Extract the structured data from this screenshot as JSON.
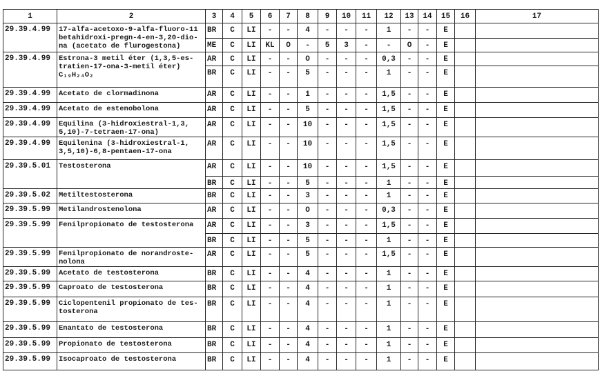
{
  "headers": [
    "1",
    "2",
    "3",
    "4",
    "5",
    "6",
    "7",
    "8",
    "9",
    "10",
    "11",
    "12",
    "13",
    "14",
    "15",
    "16",
    "17"
  ],
  "entries": [
    {
      "code": "29.39.4.99",
      "name": [
        "17-alfa-acetoxo-9-alfa-fluoro-11",
        "betahidroxi-pregn-4-en-3,20-dio-",
        "na (acetato de flurogestona)"
      ],
      "rows": [
        [
          "BR",
          "C",
          "LI",
          "-",
          "-",
          "4",
          "-",
          "-",
          "-",
          "1",
          "-",
          "-",
          "E",
          "",
          ""
        ],
        [
          "ME",
          "C",
          "LI",
          "KL",
          "O",
          "-",
          "5",
          "3",
          "-",
          "-",
          "O",
          "-",
          "E",
          "",
          ""
        ]
      ]
    },
    {
      "code": "29.39.4.99",
      "name": [
        "Estrona-3 metil éter (1,3,5-es-",
        "tratien-17-ona-3-metil éter)",
        "C₁₉H₂₄O₂"
      ],
      "rows": [
        [
          "AR",
          "C",
          "LI",
          "-",
          "-",
          "O",
          "-",
          "-",
          "-",
          "0,3",
          "-",
          "-",
          "E",
          "",
          ""
        ],
        [
          "BR",
          "C",
          "LI",
          "-",
          "-",
          "5",
          "-",
          "-",
          "-",
          "1",
          "-",
          "-",
          "E",
          "",
          ""
        ]
      ]
    },
    {
      "code": "29.39.4.99",
      "name": [
        "Acetato de clormadinona"
      ],
      "rows": [
        [
          "AR",
          "C",
          "LI",
          "-",
          "-",
          "1",
          "-",
          "-",
          "-",
          "1,5",
          "-",
          "-",
          "E",
          "",
          ""
        ]
      ]
    },
    {
      "code": "29.39.4.99",
      "name": [
        "Acetato de estenobolona"
      ],
      "rows": [
        [
          "AR",
          "C",
          "LI",
          "-",
          "-",
          "5",
          "-",
          "-",
          "-",
          "1,5",
          "-",
          "-",
          "E",
          "",
          ""
        ]
      ]
    },
    {
      "code": "29.39.4.99",
      "name": [
        "Equilina (3-hidroxiestral-1,3,",
        "5,10)-7-tetraen-17-ona)"
      ],
      "rows": [
        [
          "AR",
          "C",
          "LI",
          "-",
          "-",
          "10",
          "-",
          "-",
          "-",
          "1,5",
          "-",
          "-",
          "E",
          "",
          ""
        ]
      ]
    },
    {
      "code": "29.39.4.99",
      "name": [
        "Equilenina (3-hidroxiestral-1,",
        "3,5,10)-6,8-pentaen-17-ona"
      ],
      "rows": [
        [
          "AR",
          "C",
          "LI",
          "-",
          "-",
          "10",
          "-",
          "-",
          "-",
          "1,5",
          "-",
          "-",
          "E",
          "",
          ""
        ]
      ]
    },
    {
      "code": "29.39.5.01",
      "name": [
        "Testosterona"
      ],
      "rows": [
        [
          "AR",
          "C",
          "LI",
          "-",
          "-",
          "10",
          "-",
          "-",
          "-",
          "1,5",
          "-",
          "-",
          "E",
          "",
          ""
        ],
        [
          "BR",
          "C",
          "LI",
          "-",
          "-",
          "5",
          "-",
          "-",
          "-",
          "1",
          "-",
          "-",
          "E",
          "",
          ""
        ]
      ]
    },
    {
      "code": "29.39.5.02",
      "name": [
        "Metiltestosterona"
      ],
      "rows": [
        [
          "BR",
          "C",
          "LI",
          "-",
          "-",
          "3",
          "-",
          "-",
          "-",
          "1",
          "-",
          "-",
          "E",
          "",
          ""
        ]
      ]
    },
    {
      "code": "29.39.5.99",
      "name": [
        "Metilandrostenolona"
      ],
      "rows": [
        [
          "AR",
          "C",
          "LI",
          "-",
          "-",
          "O",
          "-",
          "-",
          "-",
          "0,3",
          "-",
          "-",
          "E",
          "",
          ""
        ]
      ]
    },
    {
      "code": "29.39.5.99",
      "name": [
        "Fenilpropionato de testosterona"
      ],
      "rows": [
        [
          "AR",
          "C",
          "LI",
          "-",
          "-",
          "3",
          "-",
          "-",
          "-",
          "1,5",
          "-",
          "-",
          "E",
          "",
          ""
        ],
        [
          "BR",
          "C",
          "LI",
          "-",
          "-",
          "5",
          "-",
          "-",
          "-",
          "1",
          "-",
          "-",
          "E",
          "",
          ""
        ]
      ]
    },
    {
      "code": "29.39.5.99",
      "name": [
        "Fenilpropionato de norandroste-",
        "nolona"
      ],
      "rows": [
        [
          "AR",
          "C",
          "LI",
          "-",
          "-",
          "5",
          "-",
          "-",
          "-",
          "1,5",
          "-",
          "-",
          "E",
          "",
          ""
        ]
      ]
    },
    {
      "code": "29.39.5.99",
      "name": [
        "Acetato de testosterona"
      ],
      "rows": [
        [
          "BR",
          "C",
          "LI",
          "-",
          "-",
          "4",
          "-",
          "-",
          "-",
          "1",
          "-",
          "-",
          "E",
          "",
          ""
        ]
      ]
    },
    {
      "code": "29.39.5.99",
      "name": [
        "Caproato de testosterona"
      ],
      "rows": [
        [
          "BR",
          "C",
          "LI",
          "-",
          "-",
          "4",
          "-",
          "-",
          "-",
          "1",
          "-",
          "-",
          "E",
          "",
          ""
        ]
      ]
    },
    {
      "code": "29.39.5.99",
      "name": [
        "Ciclopentenil propionato de tes-",
        "tosterona"
      ],
      "rows": [
        [
          "BR",
          "C",
          "LI",
          "-",
          "-",
          "4",
          "-",
          "-",
          "-",
          "1",
          "-",
          "-",
          "E",
          "",
          ""
        ]
      ]
    },
    {
      "code": "29.39.5.99",
      "name": [
        "Enantato de testosterona"
      ],
      "rows": [
        [
          "BR",
          "C",
          "LI",
          "-",
          "-",
          "4",
          "-",
          "-",
          "-",
          "1",
          "-",
          "-",
          "E",
          "",
          ""
        ]
      ]
    },
    {
      "code": "29.39.5.99",
      "name": [
        "Propionato de testosterona"
      ],
      "rows": [
        [
          "BR",
          "C",
          "LI",
          "-",
          "-",
          "4",
          "-",
          "-",
          "-",
          "1",
          "-",
          "-",
          "E",
          "",
          ""
        ]
      ]
    },
    {
      "code": "29.39.5.99",
      "name": [
        "Isocaproato de testosterona"
      ],
      "rows": [
        [
          "BR",
          "C",
          "LI",
          "-",
          "-",
          "4",
          "-",
          "-",
          "-",
          "1",
          "-",
          "-",
          "E",
          "",
          ""
        ]
      ]
    }
  ]
}
